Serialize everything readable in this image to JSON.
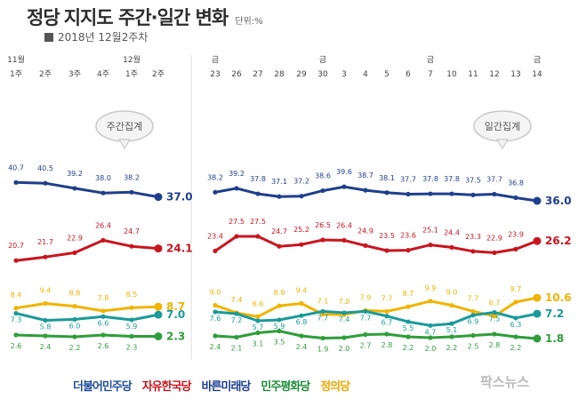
{
  "header": {
    "title_prefix": "정당",
    "title_main": "지지도 주간·일간 변화",
    "unit": "단위:%",
    "subtitle": "2018년 12월2주차"
  },
  "weekly_label": "주간집계",
  "daily_label": "일간집계",
  "weekly_month_labels": [
    "11월",
    "",
    "",
    "",
    "12월",
    ""
  ],
  "weekly_week_labels": [
    "1주",
    "2주",
    "3주",
    "4주",
    "1주",
    "2주"
  ],
  "daily_weekday_labels": [
    "금",
    "",
    "",
    "",
    "",
    "금",
    "",
    "",
    "",
    "",
    "금",
    "",
    "",
    "",
    "",
    "금"
  ],
  "daily_day_labels": [
    "23",
    "26",
    "27",
    "28",
    "29",
    "30",
    "3",
    "4",
    "5",
    "6",
    "7",
    "10",
    "11",
    "12",
    "13",
    "14"
  ],
  "logos": [
    {
      "text": "더불어민주당",
      "color": "#1f4e9c"
    },
    {
      "text": "자유한국당",
      "color": "#c9151e"
    },
    {
      "text": "바른미래당",
      "color": "#1d3f8f"
    },
    {
      "text": "민주평화당",
      "color": "#1e8c3a"
    },
    {
      "text": "정의당",
      "color": "#f0a800"
    }
  ],
  "watermark": "팍스뉴스",
  "chart_data": [
    {
      "type": "line",
      "title": "주간집계",
      "x": [
        "11월 1주",
        "2주",
        "3주",
        "4주",
        "12월 1주",
        "2주"
      ],
      "series": [
        {
          "color": "#1f3f8c",
          "values": [
            40.7,
            40.5,
            39.2,
            38.0,
            38.2,
            37.0
          ]
        },
        {
          "color": "#c9151e",
          "values": [
            20.7,
            21.7,
            22.9,
            26.4,
            24.7,
            24.1
          ]
        },
        {
          "color": "#f0b400",
          "values": [
            8.4,
            9.4,
            8.8,
            7.8,
            8.5,
            8.7
          ]
        },
        {
          "color": "#1a9a9a",
          "values": [
            7.3,
            5.8,
            6.0,
            6.6,
            5.9,
            7.0
          ]
        },
        {
          "color": "#2e9e3a",
          "values": [
            2.6,
            2.4,
            2.2,
            2.6,
            2.3,
            2.3
          ]
        }
      ]
    },
    {
      "type": "line",
      "title": "일간집계",
      "x": [
        "23",
        "26",
        "27",
        "28",
        "29",
        "30",
        "3",
        "4",
        "5",
        "6",
        "7",
        "10",
        "11",
        "12",
        "13",
        "14"
      ],
      "series": [
        {
          "color": "#1f3f8c",
          "values": [
            38.2,
            39.2,
            37.8,
            37.1,
            37.2,
            38.6,
            39.6,
            38.7,
            38.1,
            37.7,
            37.8,
            37.8,
            37.5,
            37.7,
            36.8,
            36.0
          ]
        },
        {
          "color": "#c9151e",
          "values": [
            23.4,
            27.5,
            27.5,
            24.7,
            25.2,
            26.5,
            26.4,
            24.9,
            23.5,
            23.6,
            25.1,
            24.4,
            23.3,
            22.9,
            23.9,
            26.2
          ]
        },
        {
          "color": "#f0b400",
          "values": [
            9.0,
            7.4,
            6.6,
            8.9,
            9.4,
            7.1,
            7.0,
            7.9,
            7.7,
            8.7,
            9.9,
            9.0,
            7.7,
            6.7,
            9.7,
            10.6
          ]
        },
        {
          "color": "#1a9a9a",
          "values": [
            7.6,
            7.2,
            5.7,
            5.9,
            6.8,
            7.7,
            7.4,
            7.7,
            6.7,
            5.5,
            4.7,
            5.1,
            6.9,
            7.5,
            6.3,
            7.2
          ]
        },
        {
          "color": "#2e9e3a",
          "values": [
            2.4,
            2.1,
            3.1,
            3.5,
            2.4,
            1.9,
            2.0,
            2.7,
            2.8,
            2.2,
            2.0,
            2.2,
            2.5,
            2.8,
            2.2,
            1.8
          ]
        }
      ]
    }
  ]
}
